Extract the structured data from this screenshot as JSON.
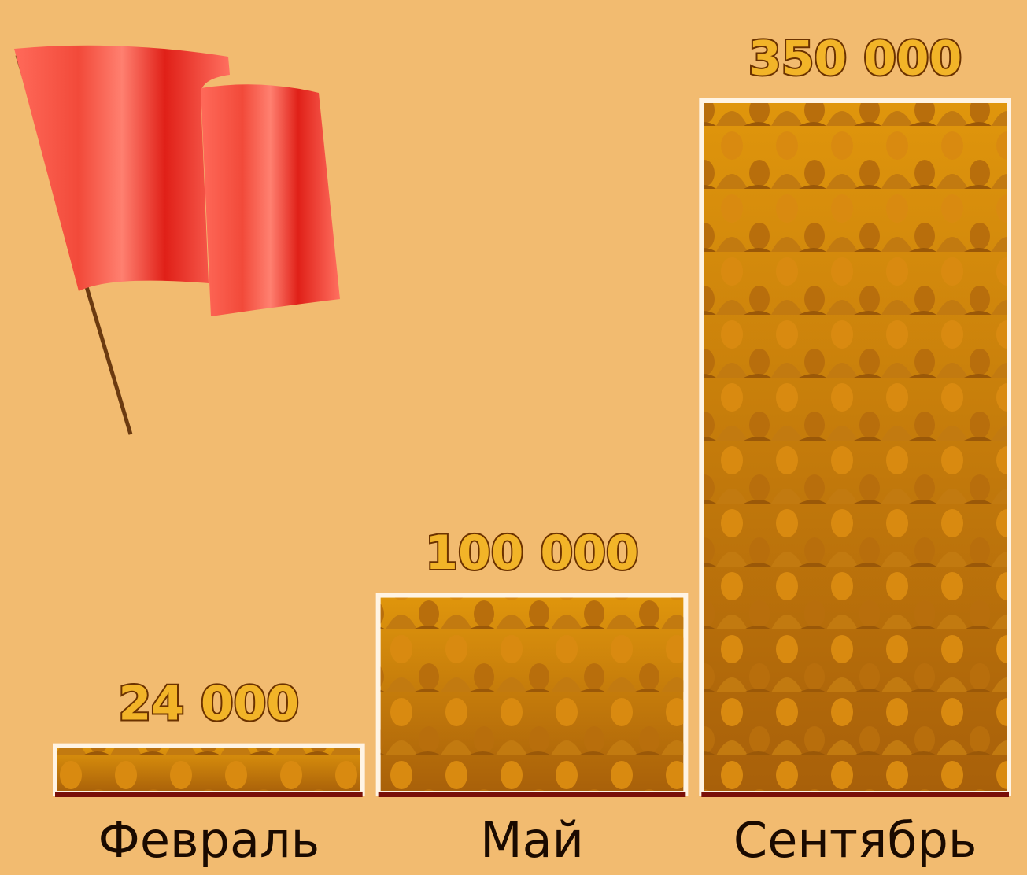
{
  "chart_data": {
    "type": "bar",
    "categories": [
      "Февраль",
      "Май",
      "Сентябрь"
    ],
    "values": [
      24000,
      100000,
      350000
    ],
    "value_labels": [
      "24 000",
      "100 000",
      "350 000"
    ],
    "ylim": [
      0,
      350000
    ]
  }
}
